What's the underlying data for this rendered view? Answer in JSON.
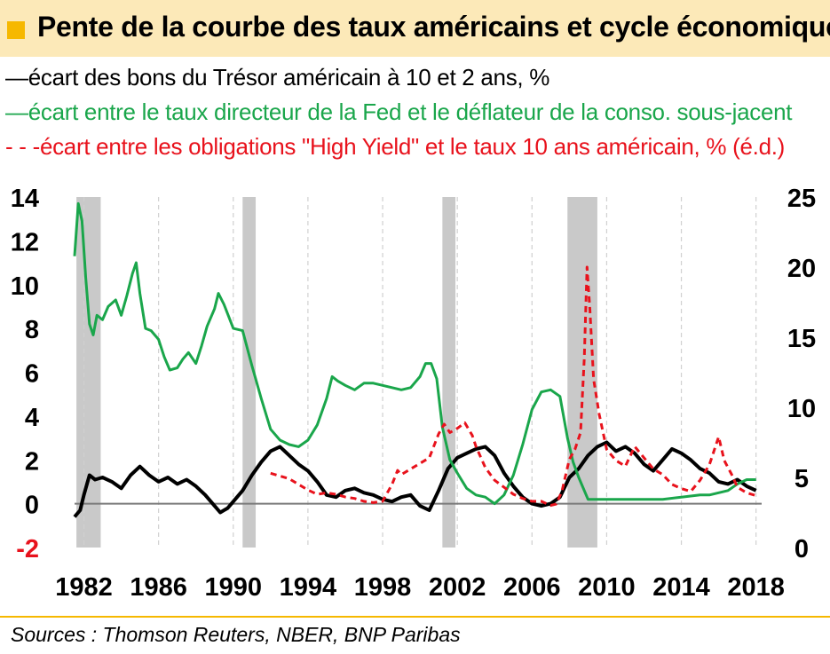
{
  "title": "Pente de la courbe des taux américains et cycle économique",
  "source": "Sources : Thomson Reuters, NBER, BNP Paribas",
  "colors": {
    "black": "#000000",
    "green": "#1aa64b",
    "red": "#e8121c",
    "recession": "#c9c9c9",
    "accent": "#f6b800",
    "titlebg": "#fce9b8"
  },
  "chart_data": {
    "type": "line",
    "xticks": [
      "1982",
      "1986",
      "1990",
      "1994",
      "1998",
      "2002",
      "2006",
      "2010",
      "2014",
      "2018"
    ],
    "xlim": [
      1981.5,
      2018.3
    ],
    "y_left": {
      "ylim": [
        -2,
        14
      ],
      "ticks": [
        "-2",
        "0",
        "2",
        "4",
        "6",
        "8",
        "10",
        "12",
        "14"
      ]
    },
    "y_right": {
      "ylim": [
        0,
        25
      ],
      "ticks": [
        "0",
        "5",
        "10",
        "15",
        "20",
        "25"
      ]
    },
    "recessions": [
      [
        1981.6,
        1982.9
      ],
      [
        1990.5,
        1991.2
      ],
      [
        2001.2,
        2001.9
      ],
      [
        2007.9,
        2009.5
      ]
    ],
    "series": [
      {
        "name": "écart des bons du Trésor américain à 10 et 2 ans, %",
        "legend_marker": "—",
        "axis": "left",
        "color": "#000000",
        "dash": "",
        "x": [
          1981.5,
          1981.8,
          1982.0,
          1982.3,
          1982.6,
          1983.0,
          1983.5,
          1984.0,
          1984.5,
          1985.0,
          1985.5,
          1986.0,
          1986.5,
          1987.0,
          1987.5,
          1988.0,
          1988.5,
          1989.0,
          1989.3,
          1989.7,
          1990.0,
          1990.5,
          1991.0,
          1991.5,
          1992.0,
          1992.5,
          1993.0,
          1993.5,
          1994.0,
          1994.5,
          1995.0,
          1995.5,
          1996.0,
          1996.5,
          1997.0,
          1997.5,
          1998.0,
          1998.5,
          1999.0,
          1999.5,
          2000.0,
          2000.5,
          2001.0,
          2001.5,
          2002.0,
          2002.5,
          2003.0,
          2003.5,
          2004.0,
          2004.5,
          2005.0,
          2005.5,
          2006.0,
          2006.5,
          2007.0,
          2007.5,
          2008.0,
          2008.5,
          2009.0,
          2009.5,
          2010.0,
          2010.5,
          2011.0,
          2011.5,
          2012.0,
          2012.5,
          2013.0,
          2013.5,
          2014.0,
          2014.5,
          2015.0,
          2015.5,
          2016.0,
          2016.5,
          2017.0,
          2017.5,
          2018.0
        ],
        "values": [
          -0.6,
          -0.3,
          0.4,
          1.3,
          1.1,
          1.2,
          1.0,
          0.7,
          1.3,
          1.7,
          1.3,
          1.0,
          1.2,
          0.9,
          1.1,
          0.8,
          0.4,
          -0.1,
          -0.4,
          -0.2,
          0.1,
          0.6,
          1.3,
          1.9,
          2.4,
          2.6,
          2.2,
          1.8,
          1.5,
          1.0,
          0.4,
          0.3,
          0.6,
          0.7,
          0.5,
          0.4,
          0.2,
          0.1,
          0.3,
          0.4,
          -0.1,
          -0.3,
          0.6,
          1.6,
          2.1,
          2.3,
          2.5,
          2.6,
          2.2,
          1.4,
          0.8,
          0.3,
          0.0,
          -0.1,
          0.0,
          0.3,
          1.2,
          1.6,
          2.2,
          2.6,
          2.8,
          2.4,
          2.6,
          2.3,
          1.8,
          1.5,
          2.0,
          2.5,
          2.3,
          2.0,
          1.6,
          1.4,
          1.0,
          0.9,
          1.1,
          0.8,
          0.6
        ]
      },
      {
        "name": "écart entre le taux directeur de la Fed et le déflateur de la conso. sous-jacent",
        "legend_marker": "—",
        "axis": "left",
        "color": "#1aa64b",
        "dash": "",
        "x": [
          1981.5,
          1981.7,
          1981.9,
          1982.1,
          1982.3,
          1982.5,
          1982.7,
          1983.0,
          1983.3,
          1983.7,
          1984.0,
          1984.3,
          1984.6,
          1984.8,
          1985.0,
          1985.3,
          1985.6,
          1986.0,
          1986.3,
          1986.6,
          1987.0,
          1987.3,
          1987.6,
          1988.0,
          1988.3,
          1988.6,
          1989.0,
          1989.2,
          1989.5,
          1990.0,
          1990.5,
          1991.0,
          1991.5,
          1992.0,
          1992.5,
          1993.0,
          1993.5,
          1994.0,
          1994.5,
          1995.0,
          1995.3,
          1995.6,
          1996.0,
          1996.5,
          1997.0,
          1997.5,
          1998.0,
          1998.5,
          1999.0,
          1999.5,
          2000.0,
          2000.3,
          2000.6,
          2000.9,
          2001.2,
          2001.6,
          2002.0,
          2002.5,
          2003.0,
          2003.5,
          2004.0,
          2004.5,
          2005.0,
          2005.5,
          2006.0,
          2006.5,
          2007.0,
          2007.5,
          2007.9,
          2008.2,
          2008.5,
          2009.0,
          2010.0,
          2011.0,
          2012.0,
          2013.0,
          2014.0,
          2015.0,
          2015.5,
          2016.0,
          2016.5,
          2017.0,
          2017.5,
          2018.0
        ],
        "values": [
          11.3,
          13.7,
          12.9,
          10.3,
          8.2,
          7.7,
          8.6,
          8.4,
          9.0,
          9.3,
          8.6,
          9.5,
          10.5,
          11.0,
          9.6,
          8.0,
          7.9,
          7.5,
          6.7,
          6.1,
          6.2,
          6.6,
          6.9,
          6.4,
          7.2,
          8.1,
          8.9,
          9.6,
          9.1,
          8.0,
          7.9,
          6.3,
          4.8,
          3.4,
          2.9,
          2.7,
          2.6,
          2.9,
          3.6,
          4.8,
          5.8,
          5.6,
          5.4,
          5.2,
          5.5,
          5.5,
          5.4,
          5.3,
          5.2,
          5.3,
          5.8,
          6.4,
          6.4,
          5.7,
          3.5,
          2.0,
          1.4,
          0.7,
          0.4,
          0.3,
          0.0,
          0.4,
          1.3,
          2.7,
          4.3,
          5.1,
          5.2,
          4.9,
          3.0,
          1.9,
          1.2,
          0.2,
          0.2,
          0.2,
          0.2,
          0.2,
          0.3,
          0.4,
          0.4,
          0.5,
          0.6,
          0.9,
          1.1,
          1.1
        ]
      },
      {
        "name": "écart entre les obligations \"High Yield\" et le taux 10 ans américain, % (é.d.)",
        "legend_marker": "- - -",
        "axis": "right",
        "color": "#e8121c",
        "dash": "7,5",
        "x": [
          1992.0,
          1992.5,
          1993.0,
          1993.5,
          1994.0,
          1994.5,
          1995.0,
          1995.5,
          1996.0,
          1996.5,
          1997.0,
          1997.5,
          1998.0,
          1998.5,
          1998.8,
          1999.0,
          1999.5,
          2000.0,
          2000.5,
          2001.0,
          2001.3,
          2001.6,
          2002.0,
          2002.4,
          2002.8,
          2003.0,
          2003.5,
          2004.0,
          2004.5,
          2005.0,
          2005.5,
          2006.0,
          2006.5,
          2007.0,
          2007.3,
          2007.6,
          2008.0,
          2008.3,
          2008.6,
          2008.8,
          2008.95,
          2009.1,
          2009.3,
          2009.6,
          2010.0,
          2010.5,
          2011.0,
          2011.5,
          2012.0,
          2012.5,
          2013.0,
          2013.5,
          2014.0,
          2014.5,
          2015.0,
          2015.5,
          2016.0,
          2016.3,
          2016.7,
          2017.0,
          2017.5,
          2018.0
        ],
        "values": [
          5.3,
          5.1,
          4.9,
          4.5,
          4.1,
          3.8,
          3.9,
          3.8,
          3.6,
          3.5,
          3.3,
          3.2,
          3.3,
          4.5,
          5.5,
          5.2,
          5.6,
          6.0,
          6.4,
          8.1,
          8.8,
          8.2,
          8.5,
          8.9,
          8.0,
          7.2,
          5.7,
          4.8,
          4.3,
          3.8,
          3.5,
          3.3,
          3.3,
          3.0,
          3.1,
          4.0,
          6.3,
          7.0,
          8.2,
          13.5,
          20.0,
          17.0,
          12.0,
          9.5,
          7.0,
          6.2,
          5.8,
          7.2,
          6.4,
          5.6,
          5.2,
          4.5,
          4.2,
          4.0,
          4.8,
          5.9,
          7.9,
          6.2,
          5.2,
          4.3,
          3.9,
          3.7
        ]
      }
    ]
  }
}
